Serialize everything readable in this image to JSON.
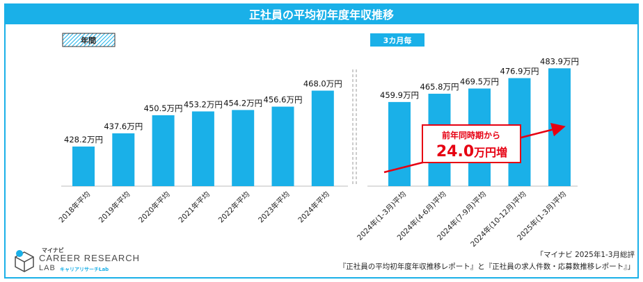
{
  "header": {
    "title": "正社員の平均初年度年収推移"
  },
  "chart_data": {
    "type": "bar",
    "unit": "万円",
    "left_panel": {
      "label": "年間",
      "categories": [
        "2018年平均",
        "2019年平均",
        "2020年平均",
        "2021年平均",
        "2022年平均",
        "2023年平均",
        "2024年平均"
      ],
      "values": [
        428.2,
        437.6,
        450.5,
        453.2,
        454.2,
        456.6,
        468.0
      ],
      "data_labels": [
        "428.2万円",
        "437.6万円",
        "450.5万円",
        "453.2万円",
        "454.2万円",
        "456.6万円",
        "468.0万円"
      ]
    },
    "right_panel": {
      "label": "3カ月毎",
      "categories": [
        "2024年(1-3月)平均",
        "2024年(4-6月)平均",
        "2024年(7-9月)平均",
        "2024年(10-12月)平均",
        "2025年(1-3月)平均"
      ],
      "values": [
        459.9,
        465.8,
        469.5,
        476.9,
        483.9
      ],
      "data_labels": [
        "459.9万円",
        "465.8万円",
        "469.5万円",
        "476.9万円",
        "483.9万円"
      ]
    },
    "ylim": [
      400,
      490
    ],
    "annotation": {
      "line1": "前年同時期から",
      "value": "24.0",
      "suffix": "万円増"
    },
    "colors": {
      "bar": "#1ab0e8",
      "accent": "#e60012",
      "title_bg": "#1ab0e8"
    }
  },
  "logo": {
    "mynavi": "マイナビ",
    "line1": "CAREER RESEARCH",
    "line2": "LAB",
    "sub": "キャリアリサーチLab"
  },
  "source": {
    "line1": "「マイナビ 2025年1-3月総評",
    "line2": "『正社員の平均初年度年収推移レポート』と『正社員の求人件数・応募数推移レポート』」"
  }
}
